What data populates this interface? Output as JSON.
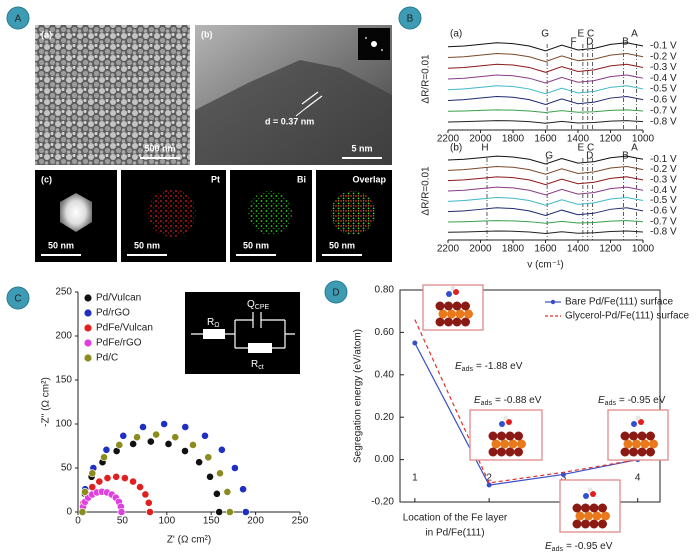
{
  "figure": {
    "panel_labels": [
      "A",
      "B",
      "C",
      "D"
    ],
    "micrographs": [
      {
        "tag": "(a)",
        "scale_bar": "500 nm"
      },
      {
        "tag": "(b)",
        "scale_bar": "5 nm",
        "annotation": "d = 0.37 nm"
      },
      {
        "tag": "(c)",
        "scale_bar": "50 nm"
      },
      {
        "tag": "Pt",
        "scale_bar": "50 nm"
      },
      {
        "tag": "Bi",
        "scale_bar": "50 nm"
      },
      {
        "tag": "Overlap",
        "scale_bar": "50 nm"
      }
    ]
  },
  "chart_data": [
    {
      "type": "line",
      "panel": "(a)",
      "ylabel": "ΔR/R=0.01",
      "legend": "end",
      "frame": false,
      "x": [
        2200,
        2100,
        2000,
        1900,
        1800,
        1700,
        1600,
        1500,
        1400,
        1300,
        1200,
        1100,
        1000
      ],
      "xlim": [
        2200,
        1000
      ],
      "xticks": [
        2200,
        2000,
        1800,
        1600,
        1400,
        1200,
        1000
      ],
      "ylim": [
        0.8,
        8.4
      ],
      "bands": [
        {
          "label": "G",
          "x": 1590
        },
        {
          "label": "F",
          "x": 1440
        },
        {
          "label": "E",
          "x": 1370
        },
        {
          "label": "D",
          "x": 1340
        },
        {
          "label": "C",
          "x": 1310
        },
        {
          "label": "B",
          "x": 1120
        },
        {
          "label": "A",
          "x": 1040
        }
      ],
      "series": [
        {
          "name": "-0.1 V",
          "color": "#111111",
          "values": [
            7,
            7.06,
            7.18,
            7.3,
            7.24,
            7.06,
            6.7,
            7.12,
            6.76,
            6.88,
            7.18,
            7.3,
            7.06
          ]
        },
        {
          "name": "-0.2 V",
          "color": "#7a4a2a",
          "values": [
            6.2,
            6.26,
            6.38,
            6.5,
            6.44,
            6.26,
            5.9,
            6.32,
            5.96,
            6.08,
            6.38,
            6.5,
            6.26
          ]
        },
        {
          "name": "-0.3 V",
          "color": "#8b1a1a",
          "values": [
            5.4,
            5.46,
            5.58,
            5.7,
            5.64,
            5.46,
            5.1,
            5.52,
            5.16,
            5.28,
            5.58,
            5.7,
            5.46
          ]
        },
        {
          "name": "-0.4 V",
          "color": "#8a3a8a",
          "values": [
            4.6,
            4.66,
            4.78,
            4.9,
            4.84,
            4.66,
            4.3,
            4.72,
            4.36,
            4.48,
            4.78,
            4.9,
            4.66
          ]
        },
        {
          "name": "-0.5 V",
          "color": "#3fb8c8",
          "values": [
            3.8,
            3.86,
            3.98,
            4.1,
            4.04,
            3.86,
            3.5,
            3.92,
            3.56,
            3.68,
            3.98,
            4.1,
            3.86
          ]
        },
        {
          "name": "-0.6 V",
          "color": "#1f2a6e",
          "values": [
            3,
            3.06,
            3.18,
            3.3,
            3.24,
            3.06,
            2.7,
            3.12,
            2.76,
            2.88,
            3.18,
            3.3,
            3.06
          ]
        },
        {
          "name": "-0.7 V",
          "color": "#3aa04a",
          "values": [
            2.2,
            2.22,
            2.26,
            2.3,
            2.28,
            2.22,
            2.1,
            2.24,
            2.12,
            2.16,
            2.26,
            2.3,
            2.22
          ]
        },
        {
          "name": "-0.8 V",
          "color": "#222222",
          "values": [
            1.4,
            1.42,
            1.46,
            1.5,
            1.48,
            1.42,
            1.3,
            1.44,
            1.32,
            1.36,
            1.46,
            1.5,
            1.42
          ]
        }
      ]
    },
    {
      "type": "line",
      "panel": "(b)",
      "ylabel": "ΔR/R=0.01",
      "xlabel": "v (cm⁻¹)",
      "legend": "end",
      "frame": false,
      "x": [
        2200,
        2100,
        2000,
        1900,
        1800,
        1700,
        1600,
        1500,
        1400,
        1300,
        1200,
        1100,
        1000
      ],
      "xlim": [
        2200,
        1000
      ],
      "xticks": [
        2200,
        2000,
        1800,
        1600,
        1400,
        1200,
        1000
      ],
      "ylim": [
        0.8,
        8.4
      ],
      "bands": [
        {
          "label": "H",
          "x": 1960
        },
        {
          "label": "G",
          "x": 1590
        },
        {
          "label": "E",
          "x": 1370
        },
        {
          "label": "D",
          "x": 1340
        },
        {
          "label": "C",
          "x": 1310
        },
        {
          "label": "B",
          "x": 1120
        },
        {
          "label": "A",
          "x": 1040
        }
      ],
      "series": [
        {
          "name": "-0.1 V",
          "color": "#111111",
          "values": [
            7,
            7.06,
            7.18,
            7.3,
            7.24,
            7.06,
            6.7,
            7.12,
            6.76,
            6.88,
            7.18,
            7.3,
            7.06
          ]
        },
        {
          "name": "-0.2 V",
          "color": "#7a4a2a",
          "values": [
            6.2,
            6.26,
            6.38,
            6.5,
            6.44,
            6.26,
            5.9,
            6.32,
            5.96,
            6.08,
            6.38,
            6.5,
            6.26
          ]
        },
        {
          "name": "-0.3 V",
          "color": "#8b1a1a",
          "values": [
            5.4,
            5.46,
            5.58,
            5.7,
            5.64,
            5.46,
            5.1,
            5.52,
            5.16,
            5.28,
            5.58,
            5.7,
            5.46
          ]
        },
        {
          "name": "-0.4 V",
          "color": "#8a3a8a",
          "values": [
            4.6,
            4.66,
            4.78,
            4.9,
            4.84,
            4.66,
            4.3,
            4.72,
            4.36,
            4.48,
            4.78,
            4.9,
            4.66
          ]
        },
        {
          "name": "-0.5 V",
          "color": "#3fb8c8",
          "values": [
            3.8,
            3.86,
            3.98,
            4.1,
            4.04,
            3.86,
            3.5,
            3.92,
            3.56,
            3.68,
            3.98,
            4.1,
            3.86
          ]
        },
        {
          "name": "-0.6 V",
          "color": "#1f2a6e",
          "values": [
            3,
            3.06,
            3.18,
            3.3,
            3.24,
            3.06,
            2.7,
            3.12,
            2.76,
            2.88,
            3.18,
            3.3,
            3.06
          ]
        },
        {
          "name": "-0.7 V",
          "color": "#3aa04a",
          "values": [
            2.2,
            2.22,
            2.26,
            2.3,
            2.28,
            2.22,
            2.1,
            2.24,
            2.12,
            2.16,
            2.26,
            2.3,
            2.22
          ]
        },
        {
          "name": "-0.8 V",
          "color": "#222222",
          "values": [
            1.4,
            1.42,
            1.46,
            1.5,
            1.48,
            1.42,
            1.3,
            1.44,
            1.32,
            1.36,
            1.46,
            1.5,
            1.42
          ]
        }
      ]
    },
    {
      "type": "scatter",
      "xlabel": "Z' (Ω cm²)",
      "ylabel": "-Z'' (Ω cm²)",
      "legend": "upper left",
      "xlim": [
        0,
        250
      ],
      "ylim": [
        0,
        250
      ],
      "xticks": [
        0,
        50,
        100,
        150,
        200,
        250
      ],
      "yticks": [
        0,
        50,
        100,
        150,
        200,
        250
      ],
      "circuit": {
        "r1": "R",
        "r1_sub": "Ω",
        "q": "Q",
        "q_sub": "CPE",
        "r2": "R",
        "r2_sub": "ct"
      },
      "series": [
        {
          "name": "Pd/Vulcan",
          "color": "#111111",
          "x": [
            5,
            7.6,
            15.3,
            27.6,
            43.5,
            62.1,
            82,
            101.9,
            120.5,
            136.4,
            148.7,
            156.4,
            159
          ],
          "values": [
            0,
            20.7,
            40,
            56.6,
            69.3,
            77.3,
            80,
            77.3,
            69.3,
            56.6,
            40,
            20.7,
            0
          ]
        },
        {
          "name": "Pd/rGO",
          "color": "#2030c0",
          "x": [
            5,
            8.1,
            17.3,
            32,
            51,
            73.2,
            97,
            120.8,
            143,
            162,
            176.7,
            185.9,
            189
          ],
          "values": [
            0,
            25.9,
            50,
            70.7,
            86.6,
            96.6,
            100,
            96.6,
            86.6,
            70.7,
            50,
            25.9,
            0
          ]
        },
        {
          "name": "PdFe/Vulcan",
          "color": "#e02020",
          "x": [
            5,
            6.3,
            10.1,
            16.1,
            24,
            33.2,
            43,
            52.8,
            62,
            69.9,
            75.9,
            79.7,
            81
          ],
          "values": [
            0,
            10.4,
            20,
            28.3,
            34.6,
            38.6,
            40,
            38.6,
            34.6,
            28.3,
            20,
            10.4,
            0
          ]
        },
        {
          "name": "PdFe/rGO",
          "color": "#e040e0",
          "x": [
            5,
            5.7,
            7.9,
            11.4,
            16,
            21.3,
            27,
            32.7,
            38,
            42.6,
            46.1,
            48.3,
            49
          ],
          "values": [
            0,
            6,
            11.5,
            16.3,
            19.9,
            22.2,
            23,
            22.2,
            19.9,
            16.3,
            11.5,
            6,
            0
          ]
        },
        {
          "name": "Pd/C",
          "color": "#8c8c1e",
          "x": [
            5,
            7.8,
            16.1,
            29.3,
            46.5,
            66.5,
            88,
            109.5,
            129.5,
            146.7,
            159.9,
            168.2,
            171
          ],
          "values": [
            0,
            22.8,
            44,
            62.2,
            76.2,
            85,
            88,
            85,
            76.2,
            62.2,
            44,
            22.8,
            0
          ]
        }
      ]
    },
    {
      "type": "line",
      "ylabel": "Segregation energy (eV/atom)",
      "xlabel": [
        "Location of the Fe layer",
        "in Pd/Fe(111)"
      ],
      "legend": "upper right",
      "frame": true,
      "x": [
        1,
        2,
        3,
        4
      ],
      "xlim": [
        0.8,
        4.3
      ],
      "xticks": [
        1,
        2,
        3,
        4
      ],
      "ylim": [
        -0.2,
        0.8
      ],
      "yticks": [
        {
          "value": 0.8,
          "label": "0.80"
        },
        {
          "value": 0.6,
          "label": "0.60"
        },
        {
          "value": 0.4,
          "label": "0.40"
        },
        {
          "value": 0.2,
          "label": "0.20"
        },
        {
          "value": 0,
          "label": "0.00"
        },
        {
          "value": -0.2,
          "label": "-0.20"
        }
      ],
      "annotations": [
        {
          "symbol": "E",
          "sub": "ads",
          "text": "= -1.88 eV"
        },
        {
          "symbol": "E",
          "sub": "ads",
          "text": "= -0.88 eV"
        },
        {
          "symbol": "E",
          "sub": "ads",
          "text": "= -0.95 eV"
        },
        {
          "symbol": "E",
          "sub": "ads",
          "text": "= -0.95 eV"
        }
      ],
      "series": [
        {
          "name": "Bare Pd/Fe(111) surface",
          "color": "#3a4fc7",
          "marker": true,
          "dash": false,
          "values": [
            0.55,
            -0.12,
            -0.07,
            0
          ]
        },
        {
          "name": "Glycerol-Pd/Fe(111) surface",
          "color": "#e0302a",
          "marker": false,
          "dash": true,
          "values": [
            0.66,
            -0.11,
            -0.06,
            0
          ]
        }
      ]
    }
  ]
}
